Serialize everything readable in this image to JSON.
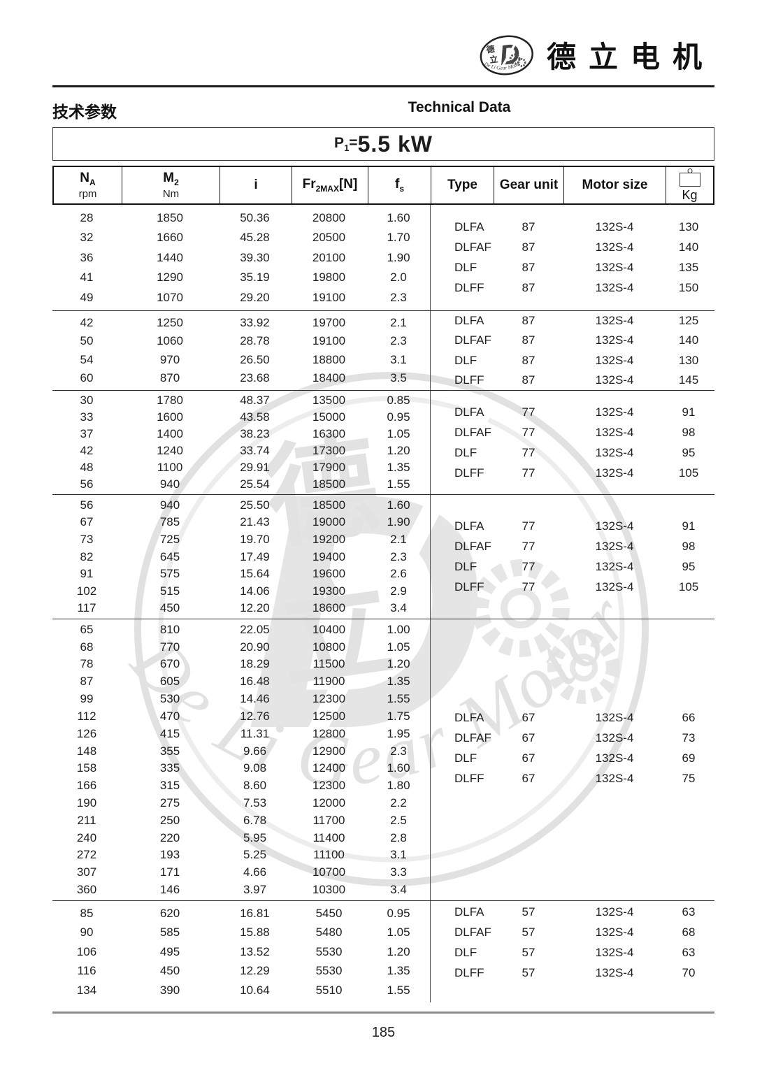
{
  "brand": {
    "name_cn": "德立电机",
    "emblem_text": "De Li Gear Motor",
    "emblem_char_top": "德",
    "emblem_char_bottom": "立",
    "emblem_letter": "D"
  },
  "titles": {
    "section_cn": "技术参数",
    "section_en": "Technical Data",
    "power_prefix": "P",
    "power_sub": "1",
    "power_eq": "=",
    "power_value": "5.5 kW"
  },
  "table": {
    "columns": [
      {
        "main": "N",
        "sub": "A",
        "suffix": "",
        "unit": "rpm"
      },
      {
        "main": "M",
        "sub": "2",
        "suffix": "",
        "unit": "Nm"
      },
      {
        "main": "i",
        "sub": "",
        "suffix": "",
        "unit": ""
      },
      {
        "main": "Fr",
        "sub": "2MAX",
        "suffix": "[N]",
        "unit": ""
      },
      {
        "main": "f",
        "sub": "s",
        "suffix": "",
        "unit": ""
      },
      {
        "main": "Type",
        "sub": "",
        "suffix": "",
        "unit": ""
      },
      {
        "main": "Gear unit",
        "sub": "",
        "suffix": "",
        "unit": ""
      },
      {
        "main": "Motor size",
        "sub": "",
        "suffix": "",
        "unit": ""
      },
      {
        "main": "Kg",
        "sub": "",
        "suffix": "",
        "unit": "",
        "icon": "weight-icon"
      }
    ],
    "groups": [
      {
        "rows": [
          [
            "28",
            "1850",
            "50.36",
            "20800",
            "1.60"
          ],
          [
            "32",
            "1660",
            "45.28",
            "20500",
            "1.70"
          ],
          [
            "36",
            "1440",
            "39.30",
            "20100",
            "1.90"
          ],
          [
            "41",
            "1290",
            "35.19",
            "19800",
            "2.0"
          ],
          [
            "49",
            "1070",
            "29.20",
            "19100",
            "2.3"
          ]
        ],
        "types": [
          [
            "DLFA",
            "87",
            "132S-4",
            "130"
          ],
          [
            "DLFAF",
            "87",
            "132S-4",
            "140"
          ],
          [
            "DLF",
            "87",
            "132S-4",
            "135"
          ],
          [
            "DLFF",
            "87",
            "132S-4",
            "150"
          ]
        ]
      },
      {
        "rows": [
          [
            "42",
            "1250",
            "33.92",
            "19700",
            "2.1"
          ],
          [
            "50",
            "1060",
            "28.78",
            "19100",
            "2.3"
          ],
          [
            "54",
            "970",
            "26.50",
            "18800",
            "3.1"
          ],
          [
            "60",
            "870",
            "23.68",
            "18400",
            "3.5"
          ]
        ],
        "types": [
          [
            "DLFA",
            "87",
            "132S-4",
            "125"
          ],
          [
            "DLFAF",
            "87",
            "132S-4",
            "140"
          ],
          [
            "DLF",
            "87",
            "132S-4",
            "130"
          ],
          [
            "DLFF",
            "87",
            "132S-4",
            "145"
          ]
        ]
      },
      {
        "rows": [
          [
            "30",
            "1780",
            "48.37",
            "13500",
            "0.85"
          ],
          [
            "33",
            "1600",
            "43.58",
            "15000",
            "0.95"
          ],
          [
            "37",
            "1400",
            "38.23",
            "16300",
            "1.05"
          ],
          [
            "42",
            "1240",
            "33.74",
            "17300",
            "1.20"
          ],
          [
            "48",
            "1100",
            "29.91",
            "17900",
            "1.35"
          ],
          [
            "56",
            "940",
            "25.54",
            "18500",
            "1.55"
          ]
        ],
        "types": [
          [
            "DLFA",
            "77",
            "132S-4",
            "91"
          ],
          [
            "DLFAF",
            "77",
            "132S-4",
            "98"
          ],
          [
            "DLF",
            "77",
            "132S-4",
            "95"
          ],
          [
            "DLFF",
            "77",
            "132S-4",
            "105"
          ]
        ]
      },
      {
        "rows": [
          [
            "56",
            "940",
            "25.50",
            "18500",
            "1.60"
          ],
          [
            "67",
            "785",
            "21.43",
            "19000",
            "1.90"
          ],
          [
            "73",
            "725",
            "19.70",
            "19200",
            "2.1"
          ],
          [
            "82",
            "645",
            "17.49",
            "19400",
            "2.3"
          ],
          [
            "91",
            "575",
            "15.64",
            "19600",
            "2.6"
          ],
          [
            "102",
            "515",
            "14.06",
            "19300",
            "2.9"
          ],
          [
            "117",
            "450",
            "12.20",
            "18600",
            "3.4"
          ]
        ],
        "types": [
          [
            "DLFA",
            "77",
            "132S-4",
            "91"
          ],
          [
            "DLFAF",
            "77",
            "132S-4",
            "98"
          ],
          [
            "DLF",
            "77",
            "132S-4",
            "95"
          ],
          [
            "DLFF",
            "77",
            "132S-4",
            "105"
          ]
        ]
      },
      {
        "rows": [
          [
            "65",
            "810",
            "22.05",
            "10400",
            "1.00"
          ],
          [
            "68",
            "770",
            "20.90",
            "10800",
            "1.05"
          ],
          [
            "78",
            "670",
            "18.29",
            "11500",
            "1.20"
          ],
          [
            "87",
            "605",
            "16.48",
            "11900",
            "1.35"
          ],
          [
            "99",
            "530",
            "14.46",
            "12300",
            "1.55"
          ],
          [
            "112",
            "470",
            "12.76",
            "12500",
            "1.75"
          ],
          [
            "126",
            "415",
            "11.31",
            "12800",
            "1.95"
          ],
          [
            "148",
            "355",
            "9.66",
            "12900",
            "2.3"
          ],
          [
            "158",
            "335",
            "9.08",
            "12400",
            "1.60"
          ],
          [
            "166",
            "315",
            "8.60",
            "12300",
            "1.80"
          ],
          [
            "190",
            "275",
            "7.53",
            "12000",
            "2.2"
          ],
          [
            "211",
            "250",
            "6.78",
            "11700",
            "2.5"
          ],
          [
            "240",
            "220",
            "5.95",
            "11400",
            "2.8"
          ],
          [
            "272",
            "193",
            "5.25",
            "11100",
            "3.1"
          ],
          [
            "307",
            "171",
            "4.66",
            "10700",
            "3.3"
          ],
          [
            "360",
            "146",
            "3.97",
            "10300",
            "3.4"
          ]
        ],
        "types": [
          [
            "DLFA",
            "67",
            "132S-4",
            "66"
          ],
          [
            "DLFAF",
            "67",
            "132S-4",
            "73"
          ],
          [
            "DLF",
            "67",
            "132S-4",
            "69"
          ],
          [
            "DLFF",
            "67",
            "132S-4",
            "75"
          ]
        ]
      },
      {
        "rows": [
          [
            "85",
            "620",
            "16.81",
            "5450",
            "0.95"
          ],
          [
            "90",
            "585",
            "15.88",
            "5480",
            "1.05"
          ],
          [
            "106",
            "495",
            "13.52",
            "5530",
            "1.20"
          ],
          [
            "116",
            "450",
            "12.29",
            "5530",
            "1.35"
          ],
          [
            "134",
            "390",
            "10.64",
            "5510",
            "1.55"
          ]
        ],
        "types": [
          [
            "DLFA",
            "57",
            "132S-4",
            "63"
          ],
          [
            "DLFAF",
            "57",
            "132S-4",
            "68"
          ],
          [
            "DLF",
            "57",
            "132S-4",
            "63"
          ],
          [
            "DLFF",
            "57",
            "132S-4",
            "70"
          ]
        ]
      }
    ]
  },
  "watermark": {
    "arc_text": "De Li Gear Motor",
    "char_top": "德",
    "char_bottom": "立",
    "letter": "D"
  },
  "footer": {
    "page_number": "185"
  }
}
